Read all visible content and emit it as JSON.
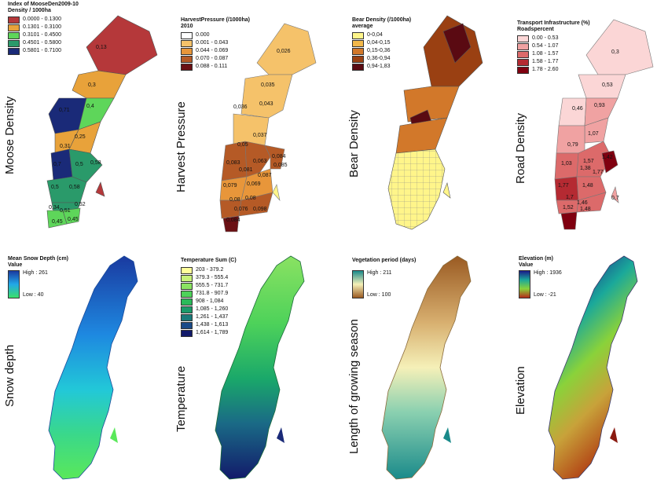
{
  "panels": {
    "moose": {
      "side_label": "Moose Density",
      "legend_title": "Index of MooseDen2009-10",
      "legend_subtitle": "Density / 1000ha",
      "classes": [
        {
          "label": "0.0000 - 0.1300",
          "color": "#b5383a"
        },
        {
          "label": "0.1301 - 0.3100",
          "color": "#e8a23a"
        },
        {
          "label": "0.3101 - 0.4500",
          "color": "#5ed65a"
        },
        {
          "label": "0.4501 - 0.5800",
          "color": "#2a9a6a"
        },
        {
          "label": "0.5801 - 0.7100",
          "color": "#1a2a78"
        }
      ],
      "map_values": [
        "0,13",
        "0,3",
        "0,71",
        "0,4",
        "0,25",
        "0,31",
        "0,7",
        "0,5",
        "0,58",
        "0,5",
        "0,58",
        "0,34",
        "0,51",
        "0,52",
        "0,45",
        "0,45"
      ]
    },
    "harvest": {
      "side_label": "Harvest Pressure",
      "legend_title": "HarvestPressure (/1000ha)",
      "legend_subtitle": "2010",
      "classes": [
        {
          "label": "0.000",
          "color": "#ffffff"
        },
        {
          "label": "0.001 - 0.043",
          "color": "#f5c26a"
        },
        {
          "label": "0.044 - 0.069",
          "color": "#e8963a"
        },
        {
          "label": "0.070 - 0.087",
          "color": "#b55a26"
        },
        {
          "label": "0.088 - 0.111",
          "color": "#6a1014"
        }
      ],
      "map_values": [
        "0,026",
        "0,035",
        "0,036",
        "0,043",
        "0,037",
        "0,05",
        "0,083",
        "0,081",
        "0,063",
        "0,084",
        "0,087",
        "0,085",
        "0,079",
        "0,069",
        "0,08",
        "0,08",
        "0,076",
        "0,098",
        "0,084"
      ]
    },
    "bear": {
      "side_label": "Bear Density",
      "legend_title": "Bear Density (/1000ha)",
      "legend_subtitle": "average",
      "classes": [
        {
          "label": "0-0,04",
          "color": "#fff58a"
        },
        {
          "label": "0,04-0,15",
          "color": "#f2b84a"
        },
        {
          "label": "0,15-0,36",
          "color": "#d2782a"
        },
        {
          "label": "0,36-0,94",
          "color": "#9a4012"
        },
        {
          "label": "0,94-1,83",
          "color": "#5a0a12"
        }
      ]
    },
    "road": {
      "side_label": "Road Density",
      "legend_title": "Transport Infrastructure (%)",
      "legend_subtitle": "Roadspercent",
      "classes": [
        {
          "label": "0.00 - 0.53",
          "color": "#fbd6d6"
        },
        {
          "label": "0.54 - 1.07",
          "color": "#f0a2a2"
        },
        {
          "label": "1.08 - 1.57",
          "color": "#dc6a6a"
        },
        {
          "label": "1.58 - 1.77",
          "color": "#b52a32"
        },
        {
          "label": "1.78 - 2.60",
          "color": "#800010"
        }
      ],
      "map_values": [
        "0,3",
        "0,53",
        "0,46",
        "0,93",
        "1,07",
        "0,79",
        "1,03",
        "1,57",
        "1,42",
        "1,38",
        "1,77",
        "1,77",
        "1,48",
        "1,7",
        "1,52",
        "1,46",
        "1,48",
        "0,7"
      ]
    },
    "snow": {
      "side_label": "Snow depth",
      "legend_title": "Mean Snow Depth (cm)",
      "legend_subtitle": "Value",
      "high": "High : 261",
      "low": "Low : 40",
      "gradient": [
        "#1a3aa0",
        "#22a8e8",
        "#3ae06a"
      ]
    },
    "temperature": {
      "side_label": "Temperature",
      "legend_title": "Temperature Sum (C)",
      "classes": [
        {
          "label": "203 - 379.2",
          "color": "#ffff9a"
        },
        {
          "label": "379.3 - 555.4",
          "color": "#c8f27a"
        },
        {
          "label": "555.5 - 731.7",
          "color": "#8ae262"
        },
        {
          "label": "731.8 - 907.9",
          "color": "#4ed25a"
        },
        {
          "label": "908 - 1,084",
          "color": "#2aba5a"
        },
        {
          "label": "1,085 - 1,260",
          "color": "#1a9a6a"
        },
        {
          "label": "1,261 - 1,437",
          "color": "#1a7a7a"
        },
        {
          "label": "1,438 - 1,613",
          "color": "#1a4a88"
        },
        {
          "label": "1,614 - 1,789",
          "color": "#121a6a"
        }
      ]
    },
    "vegetation": {
      "side_label": "Length of growing season",
      "legend_title": "Vegetation period (days)",
      "high": "High : 211",
      "low": "Low : 100",
      "gradient": [
        "#1a8a8a",
        "#f5f0b8",
        "#9a5a22"
      ]
    },
    "elevation": {
      "side_label": "Elevation",
      "legend_title": "Elevation (m)",
      "legend_subtitle": "Value",
      "high": "High : 1936",
      "low": "Low : -21",
      "gradient": [
        "#1a1a8a",
        "#1aa89a",
        "#8ad23a",
        "#b52a1a"
      ]
    }
  }
}
